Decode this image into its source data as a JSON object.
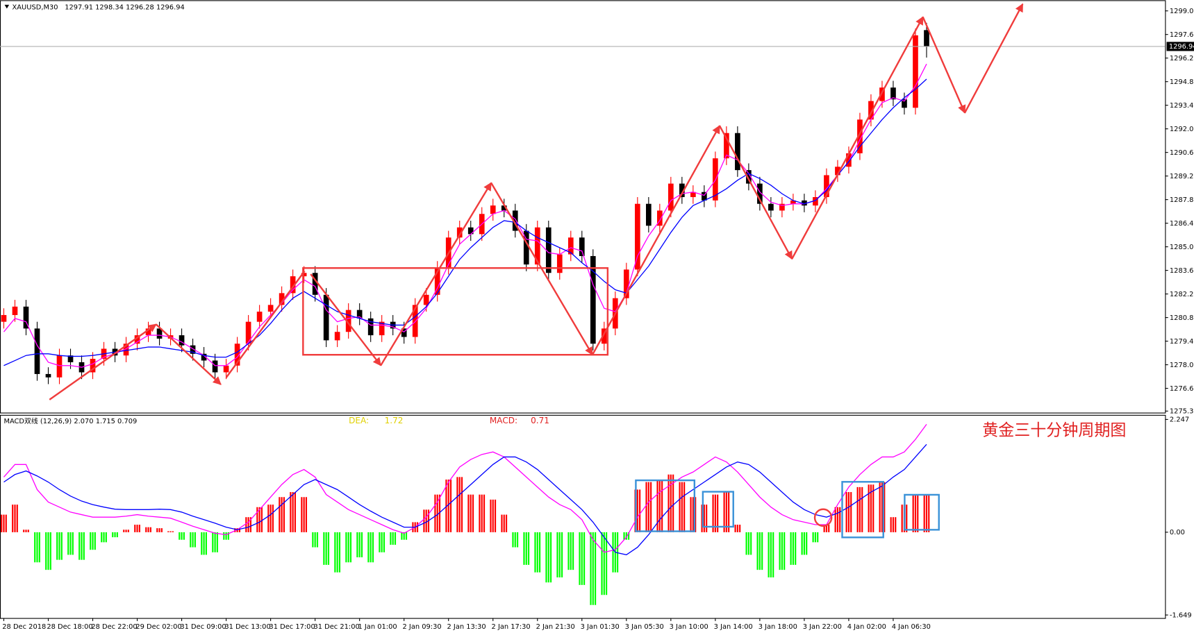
{
  "annotation": "黄金三十分钟周期图",
  "chart_data": [
    {
      "type": "candlestick",
      "title": "XAUUSD,M30",
      "categories": [
        "28 Dec 2018",
        null,
        null,
        null,
        "28 Dec 18:00",
        null,
        null,
        null,
        "28 Dec 22:00",
        null,
        null,
        null,
        "29 Dec 02:00",
        null,
        null,
        null,
        "31 Dec 09:00",
        null,
        null,
        null,
        "31 Dec 13:00",
        null,
        null,
        null,
        "31 Dec 17:00",
        null,
        null,
        null,
        "31 Dec 21:00",
        null,
        null,
        null,
        "1 Jan 01:00",
        null,
        null,
        null,
        "2 Jan 09:30",
        null,
        null,
        null,
        "2 Jan 13:30",
        null,
        null,
        null,
        "2 Jan 17:30",
        null,
        null,
        null,
        "2 Jan 21:30",
        null,
        null,
        null,
        "3 Jan 01:30",
        null,
        null,
        null,
        "3 Jan 05:30",
        null,
        null,
        null,
        "3 Jan 10:00",
        null,
        null,
        null,
        "3 Jan 14:00",
        null,
        null,
        null,
        "3 Jan 18:00",
        null,
        null,
        null,
        "3 Jan 22:00",
        null,
        null,
        null,
        "4 Jan 02:00",
        null,
        null,
        null,
        "4 Jan 06:30",
        null,
        null,
        null
      ],
      "open": [
        1280.6,
        1281.0,
        1281.5,
        1280.2,
        1277.5,
        1277.3,
        1278.6,
        1278.2,
        1277.6,
        1278.4,
        1279.0,
        1278.6,
        1279.3,
        1279.8,
        1280.2,
        1279.6,
        1279.8,
        1279.2,
        1278.7,
        1278.3,
        1277.6,
        1278.0,
        1279.3,
        1280.6,
        1281.2,
        1281.6,
        1282.3,
        1283.3,
        1283.5,
        1282.2,
        1279.5,
        1280.0,
        1281.3,
        1280.8,
        1279.8,
        1280.6,
        1280.2,
        1279.7,
        1281.6,
        1282.2,
        1283.8,
        1285.6,
        1286.2,
        1285.8,
        1287.0,
        1287.5,
        1287.2,
        1286.0,
        1284.0,
        1286.2,
        1283.5,
        1284.6,
        1285.6,
        1284.5,
        1279.3,
        1280.2,
        1282.0,
        1283.7,
        1287.6,
        1286.3,
        1287.2,
        1288.8,
        1288.0,
        1288.3,
        1287.8,
        1290.3,
        1291.8,
        1289.6,
        1288.8,
        1287.6,
        1287.2,
        1287.6,
        1287.8,
        1287.5,
        1288.0,
        1289.3,
        1289.8,
        1290.6,
        1292.6,
        1293.7,
        1294.5,
        1293.8,
        1293.3,
        1297.91
      ],
      "high": [
        1281.4,
        1281.9,
        1281.9,
        1280.6,
        1277.9,
        1279.0,
        1279.0,
        1278.6,
        1278.8,
        1279.4,
        1279.4,
        1279.7,
        1280.2,
        1280.6,
        1280.6,
        1280.2,
        1280.2,
        1279.6,
        1279.1,
        1278.7,
        1278.4,
        1279.7,
        1281.0,
        1281.6,
        1282.0,
        1282.7,
        1283.7,
        1283.9,
        1283.9,
        1282.6,
        1280.4,
        1281.7,
        1281.7,
        1281.2,
        1281.0,
        1281.0,
        1280.6,
        1282.0,
        1282.6,
        1284.2,
        1286.0,
        1286.6,
        1286.6,
        1287.4,
        1287.9,
        1287.9,
        1287.6,
        1286.4,
        1286.6,
        1286.6,
        1285.0,
        1286.0,
        1286.0,
        1284.9,
        1280.6,
        1282.4,
        1284.1,
        1288.0,
        1288.0,
        1287.6,
        1289.2,
        1289.2,
        1288.7,
        1288.7,
        1290.7,
        1292.2,
        1292.2,
        1290.0,
        1289.2,
        1288.0,
        1288.0,
        1288.2,
        1288.2,
        1288.4,
        1289.7,
        1290.2,
        1291.0,
        1293.0,
        1294.1,
        1294.9,
        1294.9,
        1294.2,
        1298.0,
        1298.34
      ],
      "low": [
        1280.2,
        1280.6,
        1279.8,
        1277.1,
        1276.9,
        1276.9,
        1277.8,
        1277.2,
        1277.2,
        1278.0,
        1278.2,
        1278.2,
        1278.9,
        1279.4,
        1279.2,
        1279.2,
        1278.8,
        1278.3,
        1277.9,
        1277.2,
        1277.2,
        1277.6,
        1278.9,
        1280.2,
        1280.8,
        1281.2,
        1281.9,
        1282.9,
        1281.8,
        1279.1,
        1279.1,
        1279.6,
        1280.4,
        1279.4,
        1279.4,
        1279.8,
        1279.3,
        1279.3,
        1281.2,
        1281.8,
        1283.4,
        1285.2,
        1285.4,
        1285.4,
        1286.6,
        1286.8,
        1285.6,
        1283.6,
        1283.6,
        1283.1,
        1283.1,
        1284.2,
        1284.1,
        1278.9,
        1278.9,
        1279.8,
        1281.6,
        1283.3,
        1285.9,
        1285.9,
        1286.8,
        1287.6,
        1287.6,
        1287.4,
        1287.4,
        1289.9,
        1289.2,
        1288.4,
        1287.2,
        1286.8,
        1286.8,
        1287.2,
        1287.1,
        1287.1,
        1287.6,
        1288.9,
        1289.4,
        1290.2,
        1292.2,
        1293.3,
        1293.4,
        1292.9,
        1292.9,
        1296.28
      ],
      "close": [
        1281.0,
        1281.5,
        1280.2,
        1277.5,
        1277.3,
        1278.6,
        1278.2,
        1277.6,
        1278.4,
        1279.0,
        1278.6,
        1279.3,
        1279.8,
        1280.2,
        1279.6,
        1279.8,
        1279.2,
        1278.7,
        1278.3,
        1277.6,
        1278.0,
        1279.3,
        1280.6,
        1281.2,
        1281.6,
        1282.3,
        1283.3,
        1283.5,
        1282.2,
        1279.5,
        1280.0,
        1281.3,
        1280.8,
        1279.8,
        1280.6,
        1280.2,
        1279.7,
        1281.6,
        1282.2,
        1283.8,
        1285.6,
        1286.2,
        1285.8,
        1287.0,
        1287.5,
        1287.2,
        1286.0,
        1284.0,
        1286.2,
        1283.5,
        1284.6,
        1285.6,
        1284.5,
        1279.3,
        1280.2,
        1282.0,
        1283.7,
        1287.6,
        1286.3,
        1287.2,
        1288.8,
        1288.0,
        1288.3,
        1287.8,
        1290.3,
        1291.8,
        1289.6,
        1288.8,
        1287.6,
        1287.2,
        1287.6,
        1287.8,
        1287.5,
        1288.0,
        1289.3,
        1289.8,
        1290.6,
        1292.6,
        1293.7,
        1294.5,
        1293.8,
        1293.3,
        1297.6,
        1296.94
      ],
      "up_color": "#ff0000",
      "down_color": "#000000",
      "series": [
        {
          "color": "#ff00ff",
          "values": [
            1280.0,
            1280.8,
            1280.6,
            1279.2,
            1278.2,
            1278.0,
            1278.0,
            1277.9,
            1278.1,
            1278.5,
            1278.7,
            1279.0,
            1279.4,
            1279.8,
            1279.8,
            1279.7,
            1279.4,
            1279.0,
            1278.6,
            1278.0,
            1278.0,
            1278.5,
            1279.4,
            1280.3,
            1281.0,
            1281.7,
            1282.5,
            1283.1,
            1282.7,
            1281.3,
            1280.6,
            1280.8,
            1280.9,
            1280.4,
            1280.4,
            1280.3,
            1280.0,
            1280.6,
            1281.4,
            1282.6,
            1284.0,
            1285.2,
            1285.8,
            1286.4,
            1287.0,
            1287.2,
            1286.7,
            1285.5,
            1285.4,
            1284.7,
            1284.6,
            1285.0,
            1284.8,
            1282.8,
            1281.4,
            1281.2,
            1282.3,
            1284.5,
            1285.7,
            1286.6,
            1287.8,
            1288.2,
            1288.3,
            1288.1,
            1289.0,
            1290.5,
            1290.2,
            1289.4,
            1288.3,
            1287.7,
            1287.5,
            1287.6,
            1287.6,
            1287.8,
            1288.5,
            1289.3,
            1290.1,
            1291.4,
            1292.6,
            1293.6,
            1293.9,
            1293.7,
            1294.6,
            1295.9
          ]
        },
        {
          "color": "#0000ff",
          "values": [
            1278.0,
            1278.3,
            1278.6,
            1278.7,
            1278.7,
            1278.6,
            1278.55,
            1278.55,
            1278.6,
            1278.7,
            1278.8,
            1278.9,
            1279.0,
            1279.1,
            1279.1,
            1279.0,
            1278.9,
            1278.8,
            1278.6,
            1278.5,
            1278.5,
            1278.8,
            1279.3,
            1279.8,
            1280.5,
            1281.3,
            1282.0,
            1282.4,
            1282.0,
            1281.6,
            1281.2,
            1281.0,
            1280.8,
            1280.6,
            1280.5,
            1280.4,
            1280.4,
            1280.9,
            1281.5,
            1282.3,
            1283.3,
            1284.3,
            1285.0,
            1285.6,
            1286.2,
            1286.6,
            1286.5,
            1286.0,
            1285.6,
            1285.3,
            1285.0,
            1284.7,
            1284.1,
            1283.6,
            1283.0,
            1282.5,
            1282.3,
            1283.1,
            1283.9,
            1284.9,
            1285.9,
            1286.8,
            1287.5,
            1287.8,
            1288.1,
            1288.5,
            1289.0,
            1289.4,
            1289.1,
            1288.7,
            1288.2,
            1287.8,
            1287.6,
            1287.8,
            1288.4,
            1289.3,
            1290.1,
            1291.0,
            1291.8,
            1292.6,
            1293.3,
            1293.9,
            1294.4,
            1295.0
          ]
        }
      ],
      "ylim": [
        1275.3,
        1299.05
      ],
      "yticks": [
        1299.05,
        1297.65,
        1296.25,
        1294.85,
        1293.45,
        1292.05,
        1290.65,
        1289.25,
        1287.85,
        1286.45,
        1285.05,
        1283.65,
        1282.25,
        1280.85,
        1279.45,
        1278.05,
        1276.65,
        {
          "value": 1275.3,
          "label": "1275.30"
        }
      ]
    },
    {
      "type": "macd",
      "title": "MACD双线 (12,26,9) 2.070 1.715 0.709",
      "dea_label": "DEA:",
      "dea_value": 1.72,
      "macd_label": "MACD:",
      "macd_value": 0.71,
      "up_color": "#ff0000",
      "down_color": "#00ff00",
      "values": [
        0.35,
        0.55,
        0.05,
        -0.6,
        -0.75,
        -0.55,
        -0.45,
        -0.55,
        -0.35,
        -0.2,
        -0.1,
        0.05,
        0.15,
        0.1,
        0.08,
        0.02,
        -0.15,
        -0.3,
        -0.45,
        -0.4,
        -0.15,
        0.08,
        0.3,
        0.5,
        0.55,
        0.7,
        0.8,
        0.7,
        -0.3,
        -0.65,
        -0.8,
        -0.6,
        -0.5,
        -0.6,
        -0.4,
        -0.25,
        -0.15,
        0.2,
        0.45,
        0.75,
        1.05,
        1.1,
        0.75,
        0.75,
        0.65,
        0.35,
        -0.3,
        -0.65,
        -0.8,
        -1.0,
        -0.9,
        -0.75,
        -1.05,
        -1.45,
        -1.25,
        -0.8,
        -0.15,
        0.85,
        1.0,
        1.05,
        1.15,
        1.0,
        0.7,
        0.55,
        0.75,
        0.8,
        0.15,
        -0.45,
        -0.75,
        -0.9,
        -0.75,
        -0.65,
        -0.45,
        -0.2,
        0.15,
        0.5,
        0.8,
        0.9,
        0.95,
        1.0,
        0.3,
        0.55,
        0.75,
        0.75
      ],
      "series": [
        {
          "color": "#ff00ff",
          "values": [
            1.1,
            1.35,
            1.35,
            0.85,
            0.6,
            0.5,
            0.4,
            0.35,
            0.3,
            0.3,
            0.3,
            0.32,
            0.35,
            0.32,
            0.3,
            0.28,
            0.2,
            0.12,
            0.05,
            -0.02,
            -0.05,
            0.05,
            0.2,
            0.45,
            0.7,
            0.95,
            1.15,
            1.25,
            1.1,
            0.75,
            0.6,
            0.45,
            0.35,
            0.25,
            0.15,
            0.05,
            -0.02,
            0.1,
            0.3,
            0.6,
            1.0,
            1.3,
            1.45,
            1.55,
            1.6,
            1.5,
            1.3,
            1.1,
            0.9,
            0.7,
            0.55,
            0.45,
            0.25,
            -0.15,
            -0.4,
            -0.35,
            -0.1,
            0.3,
            0.6,
            0.8,
            0.95,
            1.1,
            1.2,
            1.35,
            1.5,
            1.4,
            1.2,
            0.95,
            0.7,
            0.5,
            0.35,
            0.25,
            0.2,
            0.15,
            0.15,
            0.55,
            0.9,
            1.15,
            1.35,
            1.5,
            1.5,
            1.6,
            1.85,
            2.15
          ]
        },
        {
          "color": "#0000ff",
          "values": [
            1.0,
            1.15,
            1.22,
            1.12,
            1.0,
            0.85,
            0.72,
            0.62,
            0.55,
            0.5,
            0.46,
            0.45,
            0.45,
            0.45,
            0.46,
            0.45,
            0.4,
            0.32,
            0.25,
            0.18,
            0.1,
            0.05,
            0.1,
            0.2,
            0.35,
            0.55,
            0.75,
            0.95,
            1.05,
            0.95,
            0.85,
            0.7,
            0.55,
            0.42,
            0.3,
            0.2,
            0.1,
            0.1,
            0.2,
            0.35,
            0.55,
            0.75,
            0.95,
            1.15,
            1.35,
            1.5,
            1.5,
            1.4,
            1.25,
            1.05,
            0.85,
            0.65,
            0.45,
            0.2,
            -0.1,
            -0.4,
            -0.45,
            -0.3,
            -0.05,
            0.25,
            0.5,
            0.7,
            0.85,
            1.0,
            1.15,
            1.3,
            1.4,
            1.35,
            1.2,
            1.0,
            0.8,
            0.6,
            0.45,
            0.35,
            0.3,
            0.38,
            0.5,
            0.65,
            0.8,
            0.92,
            1.1,
            1.25,
            1.5,
            1.75
          ]
        }
      ],
      "ylim": [
        -1.649,
        2.247
      ],
      "yticks": [
        2.247,
        {
          "value": 0,
          "label": "0.00"
        },
        -1.649
      ]
    }
  ]
}
